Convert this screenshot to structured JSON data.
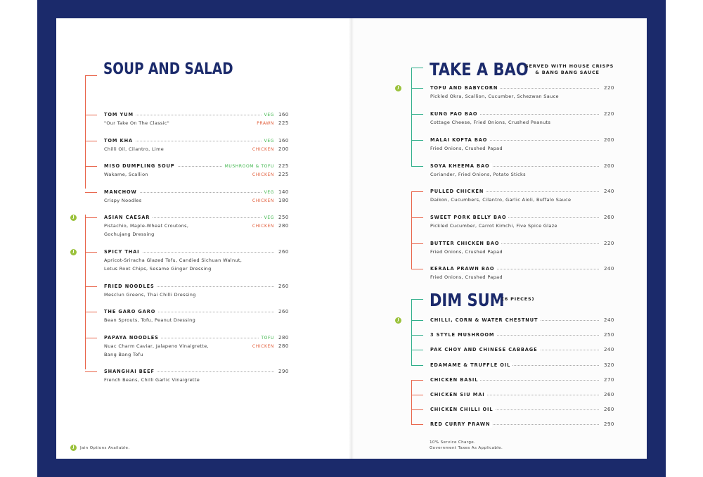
{
  "colors": {
    "navy": "#1b2a6b",
    "accent_red": "#e8644a",
    "accent_green": "#2fae8a",
    "veg": "#3db54a",
    "nonveg": "#e15c38",
    "jain_badge": "#9bc23d"
  },
  "jain_badge_letter": "J",
  "soup_salad": {
    "title": "SOUP AND SALAD",
    "items": [
      {
        "name": "TOM YUM",
        "desc": [
          "\"Our Take On The Classic\""
        ],
        "tags": [
          {
            "label": "VEG",
            "type": "veg",
            "price": "160"
          },
          {
            "label": "PRAWN",
            "type": "nonveg",
            "price": "225"
          }
        ],
        "jain": false
      },
      {
        "name": "TOM KHA",
        "desc": [
          "Chilli Oil, Cilantro, Lime"
        ],
        "tags": [
          {
            "label": "VEG",
            "type": "veg",
            "price": "160"
          },
          {
            "label": "CHICKEN",
            "type": "nonveg",
            "price": "200"
          }
        ],
        "jain": false
      },
      {
        "name": "MISO DUMPLING SOUP",
        "desc": [
          "Wakame, Scallion"
        ],
        "tags": [
          {
            "label": "MUSHROOM  & TOFU",
            "type": "veg",
            "price": "225"
          },
          {
            "label": "CHICKEN",
            "type": "nonveg",
            "price": "225"
          }
        ],
        "jain": false
      },
      {
        "name": "MANCHOW",
        "desc": [
          "Crispy Noodles"
        ],
        "tags": [
          {
            "label": "VEG",
            "type": "veg",
            "price": "140"
          },
          {
            "label": "CHICKEN",
            "type": "nonveg",
            "price": "180"
          }
        ],
        "jain": false
      },
      {
        "name": "ASIAN CAESAR",
        "desc": [
          "Pistachio, Maple-Wheat Croutons,",
          "Gochujang Dressing"
        ],
        "tags": [
          {
            "label": "VEG",
            "type": "veg",
            "price": "250"
          },
          {
            "label": "CHICKEN",
            "type": "nonveg",
            "price": "280"
          }
        ],
        "jain": true
      },
      {
        "name": "SPICY THAI",
        "desc": [
          "Apricot-Sriracha Glazed Tofu, Candied Sichuan Walnut,",
          "Lotus Root Chips, Sesame Ginger Dressing"
        ],
        "price": "260",
        "jain": true
      },
      {
        "name": "FRIED NOODLES",
        "desc": [
          "Mesclun Greens, Thai Chilli Dressing"
        ],
        "price": "260",
        "jain": false
      },
      {
        "name": "THE GARO GARO",
        "desc": [
          "Bean Sprouts, Tofu, Peanut Dressing"
        ],
        "price": "260",
        "jain": false
      },
      {
        "name": "PAPAYA NOODLES",
        "desc": [
          "Nuac Charm Caviar, Jalapeno Vinaigrette,",
          "Bang Bang Tofu"
        ],
        "tags": [
          {
            "label": "TOFU",
            "type": "veg",
            "price": "280"
          },
          {
            "label": "CHICKEN",
            "type": "nonveg",
            "price": "280"
          }
        ],
        "jain": false
      },
      {
        "name": "SHANGHAI BEEF",
        "desc": [
          "French Beans, Chilli Garlic Vinaigrette"
        ],
        "price": "290",
        "jain": false
      }
    ],
    "footnote": "Jain Options Available."
  },
  "bao": {
    "title": "TAKE A BAO",
    "subtitle": [
      "SERVED WITH HOUSE CRISPS",
      "& BANG BANG SAUCE"
    ],
    "items": [
      {
        "name": "TOFU AND BABYCORN",
        "desc": "Pickled Okra, Scallion, Cucumber, Schezwan Sauce",
        "price": "220",
        "jain": true
      },
      {
        "name": "KUNG PAO BAO",
        "desc": "Cottage Cheese, Fried Onions, Crushed Peanuts",
        "price": "220",
        "jain": false
      },
      {
        "name": "MALAI KOFTA BAO",
        "desc": "Fried Onions, Crushed Papad",
        "price": "200",
        "jain": false
      },
      {
        "name": "SOYA KHEEMA BAO",
        "desc": "Coriander, Fried Onions, Potato Sticks",
        "price": "200",
        "jain": false
      },
      {
        "name": "PULLED CHICKEN",
        "desc": "Daikon, Cucumbers, Cilantro, Garlic Aioli, Buffalo Sauce",
        "price": "240",
        "jain": false
      },
      {
        "name": "SWEET PORK BELLY BAO",
        "desc": "Pickled Cucumber, Carrot Kimchi, Five Spice Glaze",
        "price": "260",
        "jain": false
      },
      {
        "name": "BUTTER CHICKEN BAO",
        "desc": "Fried Onions, Crushed Papad",
        "price": "220",
        "jain": false
      },
      {
        "name": "KERALA PRAWN BAO",
        "desc": "Fried Onions, Crushed Papad",
        "price": "240",
        "jain": false
      }
    ]
  },
  "dimsum": {
    "title": "DIM SUM",
    "subtitle": "(6 PIECES)",
    "items": [
      {
        "name": "CHILLI, CORN & WATER CHESTNUT",
        "price": "240",
        "jain": true
      },
      {
        "name": "3 STYLE MUSHROOM",
        "price": "250",
        "jain": false
      },
      {
        "name": "PAK CHOY AND CHINESE CABBAGE",
        "price": "240",
        "jain": false
      },
      {
        "name": "EDAMAME & TRUFFLE OIL",
        "price": "320",
        "jain": false
      },
      {
        "name": "CHICKEN BASIL",
        "price": "270",
        "jain": false
      },
      {
        "name": "CHICKEN SIU MAI",
        "price": "260",
        "jain": false
      },
      {
        "name": "CHICKEN CHILLI OIL",
        "price": "260",
        "jain": false
      },
      {
        "name": "RED CURRY PRAWN",
        "price": "290",
        "jain": false
      }
    ]
  },
  "charges": [
    "10% Service Charge.",
    "Government Taxes As Applicable."
  ]
}
